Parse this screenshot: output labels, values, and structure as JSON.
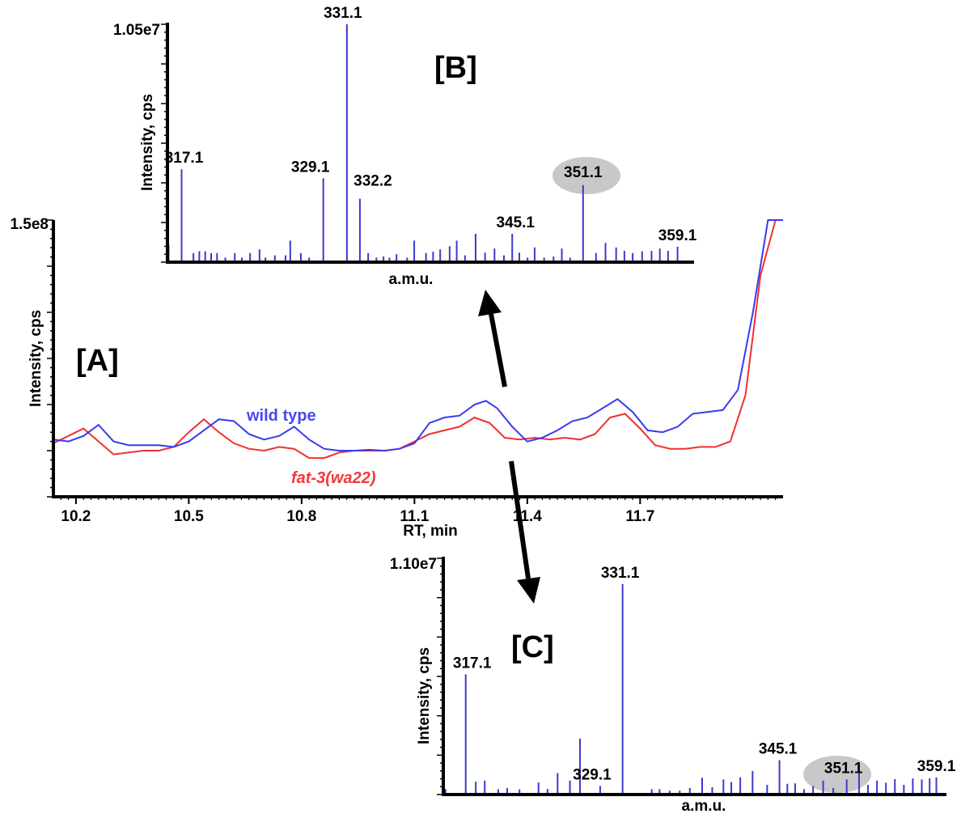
{
  "chart_data": [
    {
      "panel_label": "[A]",
      "type": "line",
      "xlabel": "RT, min",
      "ylabel": "Intensity, cps",
      "y_max_label": "1.5e8",
      "xlim": [
        10.14,
        12.08
      ],
      "ylim": [
        0,
        150000000
      ],
      "x_ticks": [
        "10.2",
        "10.5",
        "10.8",
        "11.1",
        "11.4",
        "11.7"
      ],
      "grid": false,
      "series": [
        {
          "name": "wild type",
          "color": "#3a3af0",
          "x": [
            10.14,
            10.18,
            10.22,
            10.26,
            10.3,
            10.34,
            10.38,
            10.42,
            10.46,
            10.5,
            10.54,
            10.58,
            10.62,
            10.66,
            10.7,
            10.74,
            10.78,
            10.82,
            10.86,
            10.9,
            10.94,
            10.98,
            11.02,
            11.06,
            11.1,
            11.14,
            11.18,
            11.22,
            11.26,
            11.29,
            11.32,
            11.36,
            11.4,
            11.44,
            11.48,
            11.52,
            11.56,
            11.6,
            11.64,
            11.68,
            11.72,
            11.76,
            11.8,
            11.84,
            11.88,
            11.92,
            11.96,
            12.0,
            12.04,
            12.08
          ],
          "y": [
            31000000,
            30000000,
            33000000,
            39000000,
            30000000,
            28000000,
            28000000,
            28000000,
            27000000,
            30000000,
            36000000,
            42000000,
            41000000,
            34000000,
            31000000,
            33000000,
            38000000,
            31000000,
            26000000,
            25000000,
            25000000,
            25500000,
            25000000,
            26000000,
            29000000,
            40000000,
            43000000,
            44000000,
            50000000,
            52000000,
            48000000,
            38000000,
            30000000,
            32000000,
            36000000,
            41000000,
            43000000,
            48000000,
            53000000,
            46000000,
            36000000,
            35000000,
            38000000,
            45000000,
            46000000,
            47000000,
            58000000,
            100000000,
            150000000,
            150000000
          ]
        },
        {
          "name": "fat-3(wa22)",
          "color": "#f03030",
          "x": [
            10.14,
            10.18,
            10.22,
            10.26,
            10.3,
            10.34,
            10.38,
            10.42,
            10.46,
            10.5,
            10.54,
            10.58,
            10.62,
            10.66,
            10.7,
            10.74,
            10.78,
            10.82,
            10.86,
            10.9,
            10.94,
            10.98,
            11.02,
            11.06,
            11.1,
            11.14,
            11.18,
            11.22,
            11.26,
            11.3,
            11.34,
            11.38,
            11.42,
            11.46,
            11.5,
            11.54,
            11.58,
            11.62,
            11.66,
            11.7,
            11.74,
            11.78,
            11.82,
            11.86,
            11.9,
            11.94,
            11.98,
            12.02,
            12.06,
            12.08
          ],
          "y": [
            29000000,
            33000000,
            37000000,
            30000000,
            23000000,
            24000000,
            25000000,
            25000000,
            27000000,
            35000000,
            42000000,
            35000000,
            29000000,
            26000000,
            25000000,
            27000000,
            26000000,
            21000000,
            21000000,
            24000000,
            25000000,
            25000000,
            25000000,
            26000000,
            30000000,
            34000000,
            36000000,
            38000000,
            43000000,
            40000000,
            32000000,
            31000000,
            32000000,
            31000000,
            32000000,
            31000000,
            34000000,
            43000000,
            45000000,
            37000000,
            28000000,
            26000000,
            26000000,
            27000000,
            27000000,
            30000000,
            55000000,
            120000000,
            150000000,
            150000000
          ]
        }
      ]
    },
    {
      "panel_label": "[B]",
      "type": "bar",
      "xlabel": "a.m.u.",
      "ylabel": "Intensity, cps",
      "y_max_label": "1.05e7",
      "xlim": [
        315.9,
        360.5
      ],
      "ylim": [
        0,
        10500000
      ],
      "grid": false,
      "bar_color": "#3a3ad0",
      "highlight_label": "351.1",
      "x": [
        316.0,
        317.1,
        318.1,
        318.6,
        319.1,
        319.6,
        320.1,
        320.8,
        321.6,
        322.2,
        322.9,
        323.7,
        324.2,
        325.0,
        325.9,
        326.3,
        327.2,
        327.9,
        329.1,
        331.1,
        332.2,
        332.9,
        333.6,
        334.2,
        334.7,
        335.3,
        336.2,
        336.8,
        337.8,
        338.4,
        339.0,
        339.8,
        340.4,
        341.1,
        342.0,
        342.8,
        343.6,
        344.4,
        345.1,
        345.7,
        346.4,
        347.0,
        347.8,
        348.6,
        349.3,
        350.0,
        351.1,
        352.2,
        353.0,
        353.9,
        354.6,
        355.3,
        356.1,
        356.9,
        357.6,
        358.3,
        359.1
      ],
      "values": [
        750000,
        4100000,
        400000,
        480000,
        480000,
        400000,
        400000,
        200000,
        400000,
        200000,
        400000,
        560000,
        200000,
        300000,
        300000,
        950000,
        400000,
        200000,
        3700000,
        10500000,
        2800000,
        400000,
        200000,
        250000,
        200000,
        350000,
        200000,
        950000,
        400000,
        460000,
        560000,
        700000,
        950000,
        300000,
        1250000,
        420000,
        600000,
        300000,
        1250000,
        420000,
        200000,
        650000,
        200000,
        250000,
        600000,
        200000,
        3400000,
        400000,
        850000,
        650000,
        500000,
        400000,
        480000,
        500000,
        600000,
        500000,
        680000
      ],
      "peak_labels": [
        "317.1",
        "329.1",
        "331.1",
        "332.2",
        "345.1",
        "351.1",
        "359.1"
      ]
    },
    {
      "panel_label": "[C]",
      "type": "bar",
      "xlabel": "a.m.u.",
      "ylabel": "Intensity, cps",
      "y_max_label": "1.10e7",
      "xlim": [
        315.1,
        360.0
      ],
      "ylim": [
        0,
        11000000
      ],
      "grid": false,
      "bar_color": "#3a3ad0",
      "highlight_label": "351.1",
      "x": [
        315.3,
        317.1,
        318.0,
        318.8,
        320.0,
        320.8,
        321.9,
        323.6,
        324.4,
        325.3,
        326.4,
        327.3,
        329.1,
        331.1,
        333.7,
        334.4,
        335.3,
        336.2,
        337.1,
        338.2,
        339.1,
        340.1,
        340.8,
        341.6,
        342.7,
        344.0,
        345.1,
        345.8,
        346.5,
        347.3,
        348.1,
        349.0,
        349.9,
        351.1,
        352.2,
        353.0,
        353.8,
        354.6,
        355.4,
        356.2,
        357.0,
        357.8,
        358.5,
        359.1
      ],
      "values": [
        260000,
        5600000,
        600000,
        650000,
        250000,
        300000,
        240000,
        560000,
        260000,
        1000000,
        650000,
        2600000,
        400000,
        9800000,
        250000,
        250000,
        180000,
        180000,
        300000,
        780000,
        340000,
        700000,
        580000,
        800000,
        1100000,
        450000,
        1600000,
        500000,
        520000,
        250000,
        400000,
        650000,
        300000,
        700000,
        1100000,
        450000,
        650000,
        550000,
        720000,
        450000,
        750000,
        700000,
        750000,
        800000
      ],
      "peak_labels": [
        "317.1",
        "329.1",
        "331.1",
        "345.1",
        "351.1",
        "359.1"
      ]
    }
  ],
  "colors": {
    "wild_type": "#3a3af0",
    "mutant": "#f03030",
    "bars": "#3a3ad0",
    "highlight": "#c8c8c8"
  }
}
